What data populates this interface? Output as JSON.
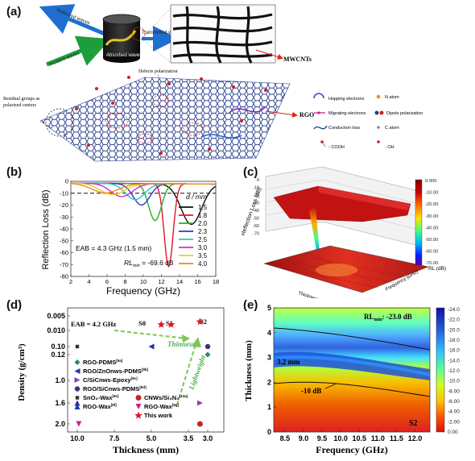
{
  "panel_a": {
    "label": "(a)",
    "reflected_waves": "Reflected waves",
    "incident_waves": "Incident waves",
    "absorbed_waves": "Absorbed waves",
    "transmitted_waves": "Transmitted waves",
    "mwcnts": "MWCNTs",
    "defects_polarization": "Defects polarization",
    "rgo": "RGO",
    "residual_groups": "Residual groups as",
    "polarized_centers": "polarized centers",
    "legend": {
      "hopping": "Hopping electrons",
      "migrating": "Migrating electrons",
      "conduction": "Conduction loss",
      "n_atom": "N atom",
      "dipole": "Dipole polarization",
      "c_atom": "C atom",
      "cooh": "- COOH",
      "oh": "- OH"
    }
  },
  "panel_b": {
    "label": "(b)",
    "xlabel": "Frequency (GHz)",
    "ylabel": "Reflection Loss (dB)",
    "legend_title": "d / mm",
    "eab": "EAB = 4.3 GHz (1.5 mm)",
    "rl_prefix": "RL",
    "rl_sub": "min",
    "rl_value": " = -69.6 dB",
    "xticks": [
      "2",
      "4",
      "6",
      "8",
      "10",
      "12",
      "14",
      "16",
      "18"
    ],
    "yticks": [
      "0",
      "-10",
      "-20",
      "-30",
      "-40",
      "-50",
      "-60",
      "-70",
      "-80"
    ]
  },
  "chart_data": [
    {
      "type": "line",
      "xlabel": "Frequency (GHz)",
      "ylabel": "Reflection Loss (dB)",
      "xlim": [
        2,
        18
      ],
      "ylim": [
        -80,
        0
      ],
      "reference_line": -10,
      "series": [
        {
          "name": "1.5",
          "color": "#111111",
          "dip_f": 15.3,
          "dip_rl": -34,
          "width": 1.6
        },
        {
          "name": "1.8",
          "color": "#e0142a",
          "dip_f": 12.8,
          "dip_rl": -69.6,
          "width": 0.7
        },
        {
          "name": "2.0",
          "color": "#22b322",
          "dip_f": 11.3,
          "dip_rl": -31,
          "width": 1.0
        },
        {
          "name": "2.3",
          "color": "#2b36d6",
          "dip_f": 9.8,
          "dip_rl": -18,
          "width": 1.3
        },
        {
          "name": "2.5",
          "color": "#27c7c7",
          "dip_f": 9.1,
          "dip_rl": -13.5,
          "width": 1.5
        },
        {
          "name": "3.0",
          "color": "#d12bd1",
          "dip_f": 7.6,
          "dip_rl": -11,
          "width": 1.7
        },
        {
          "name": "3.5",
          "color": "#e7d21e",
          "dip_f": 6.6,
          "dip_rl": -9.5,
          "width": 1.9
        },
        {
          "name": "4.0",
          "color": "#ef8a1e",
          "dip_f": 5.8,
          "dip_rl": -8,
          "width": 2.1
        }
      ]
    },
    {
      "type": "scatter",
      "xlabel": "Thickness (mm)",
      "ylabel": "Density (g/cm³)",
      "points": [
        {
          "name": "RGO-PDMS",
          "x": 3.0,
          "y": 0.12,
          "color": "#2e8b57",
          "marker": "diamond"
        },
        {
          "name": "RGO/ZnOnws-PDMS",
          "x": 5.0,
          "y": 0.1,
          "color": "#2233aa",
          "marker": "tri-left"
        },
        {
          "name": "C/SiCnws-Epoxy",
          "x": 3.2,
          "y": 1.6,
          "color": "#8844aa",
          "marker": "tri-right"
        },
        {
          "name": "RGO/SiCnws-PDMS",
          "x": 3.0,
          "y": 0.1,
          "color": "#4b2a7a",
          "marker": "hexagon"
        },
        {
          "name": "SnO2-Wax",
          "x": 10.0,
          "y": 0.1,
          "color": "#333333",
          "marker": "circle-sm"
        },
        {
          "name": "CNWs/Si3N4",
          "x": 3.2,
          "y": 2.0,
          "color": "#cc2222",
          "marker": "circle"
        },
        {
          "name": "RGO-Wax",
          "x": 10.0,
          "y": 1.6,
          "color": "#2233aa",
          "marker": "tri-up"
        },
        {
          "name": "RGO-Wax",
          "x": 9.9,
          "y": 2.0,
          "color": "#cc2288",
          "marker": "tri-down"
        },
        {
          "name": "S0",
          "x": 4.6,
          "y": 0.008,
          "color": "#e01b24",
          "marker": "star"
        },
        {
          "name": "S1",
          "x": 4.2,
          "y": 0.008,
          "color": "#e01b24",
          "marker": "star"
        },
        {
          "name": "S2",
          "x": 3.2,
          "y": 0.007,
          "color": "#e01b24",
          "marker": "star"
        }
      ]
    },
    {
      "type": "heatmap",
      "xlabel": "Frequency (GHz)",
      "ylabel": "Thickness (mm)",
      "xlim": [
        8.2,
        12.4
      ],
      "ylim": [
        0,
        5
      ],
      "colorbar": [
        -24.0,
        0.0
      ]
    }
  ],
  "panel_c": {
    "label": "(c)",
    "zlabel": "Reflection Loss (dB)",
    "rl_axis": "RL (dB)",
    "thickness": "Thickness (mm)",
    "frequency": "Frequency (GHz)",
    "colorbar_ticks": [
      "0.000",
      "-10.00",
      "-20.00",
      "-30.00",
      "-40.00",
      "-50.00",
      "-60.00",
      "-70.00"
    ],
    "z_ticks": [
      "0",
      "-10",
      "-20",
      "-30",
      "-40",
      "-50",
      "-60",
      "-70"
    ]
  },
  "panel_d": {
    "label": "(d)",
    "eab": "EAB = 4.2 GHz",
    "s0": "S0",
    "s1": "S1",
    "s2": "S2",
    "thinness": "Thinness",
    "lightweight": "Lightweight",
    "xlabel": "Thickness (mm)",
    "ylabel": "Density (g/cm³)",
    "xticks": [
      "10.0",
      "7.5",
      "5.0",
      "3.5",
      "3.0"
    ],
    "yticks": [
      "0.005",
      "0.010",
      "0.10",
      "0.12",
      "1.0",
      "1.6",
      "2.0"
    ],
    "legend": [
      {
        "text": "RGO-PDMS",
        "ref": "[9a]"
      },
      {
        "text": "RGO/ZnOnws-PDMS",
        "ref": "[9b]"
      },
      {
        "text": "C/SiCnws-Epoxy",
        "ref": "[9c]"
      },
      {
        "text": "RGO/SiCnws-PDMS",
        "ref": "[9d]"
      },
      {
        "text": "SnO₂-Wax",
        "ref": "[9e]"
      },
      {
        "text": "CNWs/Si₃N₄",
        "ref": "[13a]"
      },
      {
        "text": "RGO-Wax",
        "ref": "[9f]"
      },
      {
        "text": "RGO-Wax",
        "ref": "[9g]"
      },
      {
        "text": "This work",
        "ref": ""
      }
    ]
  },
  "panel_e": {
    "label": "(e)",
    "rl_prefix": "RL",
    "rl_sub": "min",
    "rl_value": ": -23.0 dB",
    "thick_note": "3.2 mm",
    "contour": "-10 dB",
    "sample": "S2",
    "xlabel": "Frequency (GHz)",
    "ylabel": "Thickness (mm)",
    "xticks": [
      "8.5",
      "9.0",
      "9.5",
      "10.0",
      "10.5",
      "11.0",
      "11.5",
      "12.0"
    ],
    "yticks": [
      "0",
      "1",
      "2",
      "3",
      "4",
      "5"
    ],
    "colorbar_ticks": [
      "-24.0",
      "-22.0",
      "-20.0",
      "-18.0",
      "-16.0",
      "-14.0",
      "-12.0",
      "-10.0",
      "-8.00",
      "-6.00",
      "-4.00",
      "-2.00",
      "0.00"
    ]
  }
}
